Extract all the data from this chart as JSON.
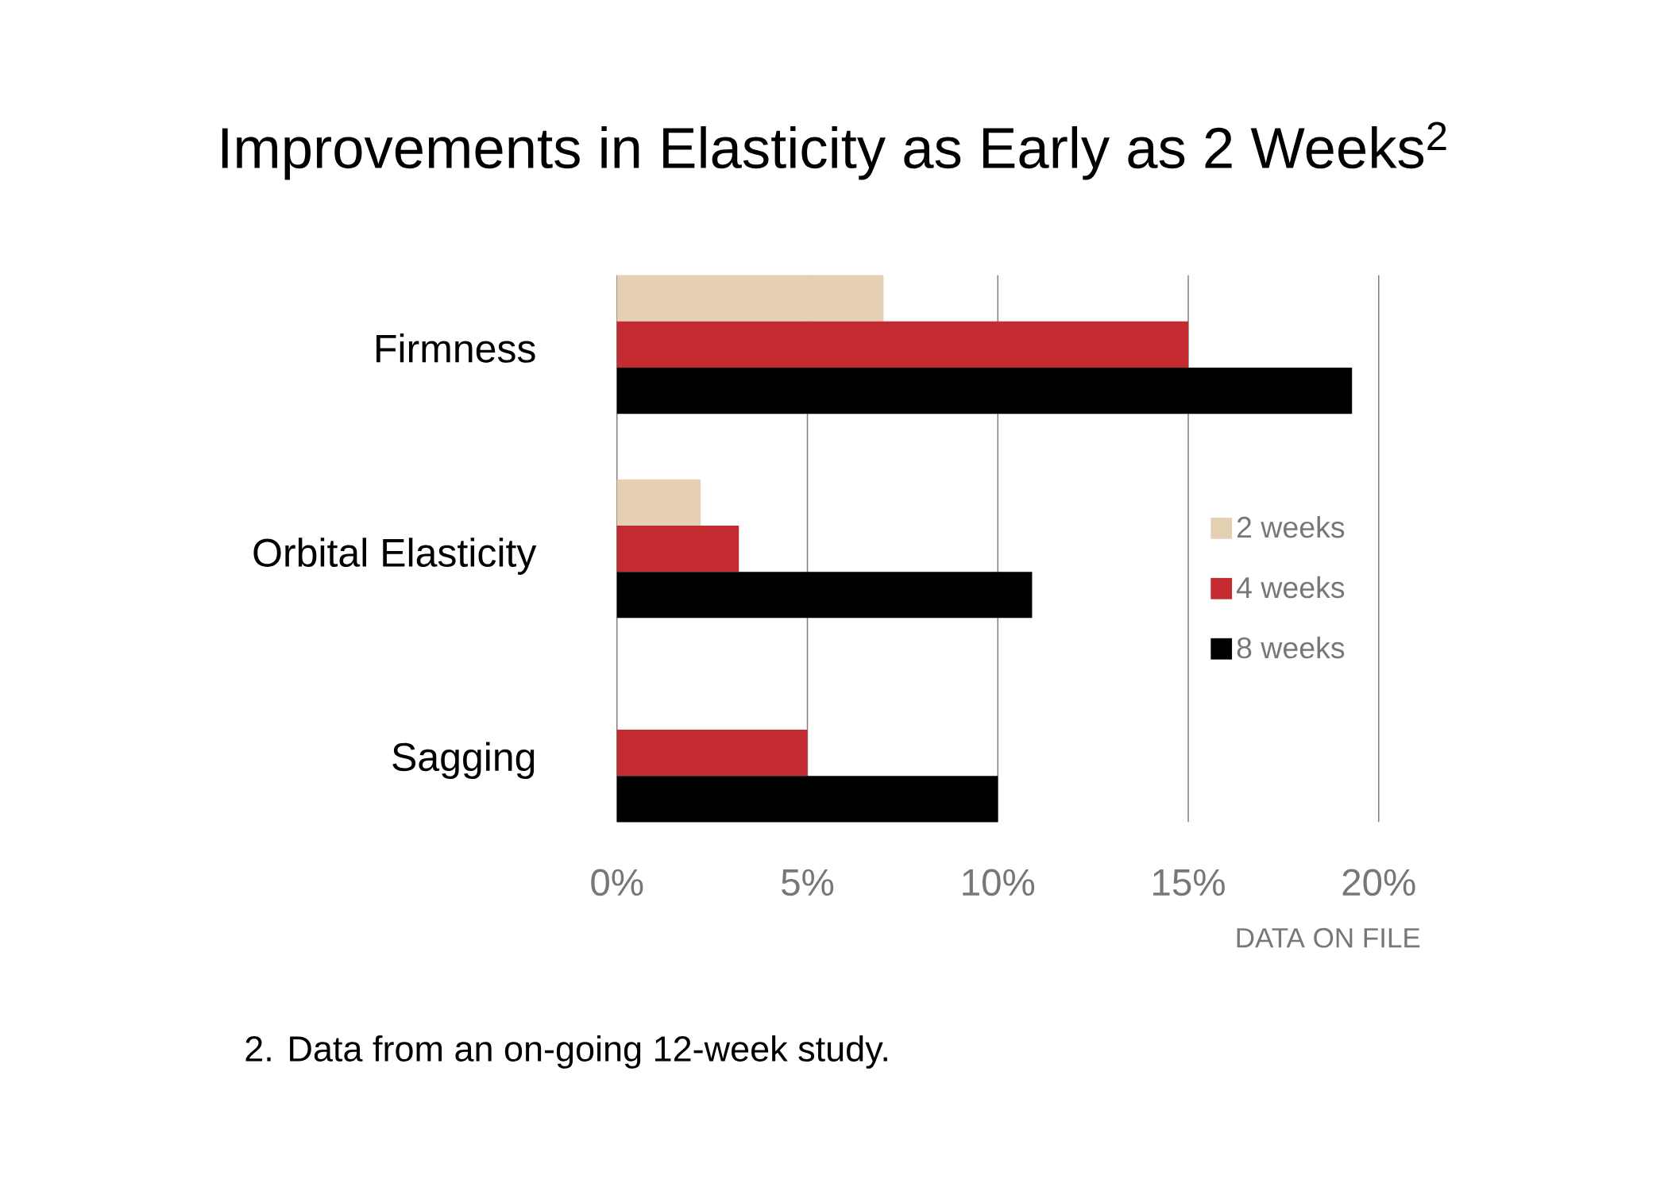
{
  "chart_data": {
    "type": "bar",
    "orientation": "horizontal",
    "title": "Improvements in Elasticity as Early as 2 Weeks$^{2}$",
    "categories": [
      "Firmness",
      "Orbital Elasticity",
      "Sagging"
    ],
    "series": [
      {
        "name": "2 weeks",
        "color": "#e6d0b4",
        "values": [
          7,
          2.2,
          null
        ]
      },
      {
        "name": "4 weeks",
        "color": "#c42b31",
        "values": [
          15,
          3.2,
          5
        ]
      },
      {
        "name": "8 weeks",
        "color": "#000000",
        "values": [
          19.3,
          10.9,
          10
        ]
      }
    ],
    "xlim": [
      0,
      20
    ],
    "xticks": [
      {
        "value": 0,
        "label": "0%"
      },
      {
        "value": 5,
        "label": "5%"
      },
      {
        "value": 10,
        "label": "10%"
      },
      {
        "value": 15,
        "label": "15%"
      },
      {
        "value": 20,
        "label": "20%"
      }
    ],
    "grid": "x",
    "legend": "right",
    "annotations": [
      "DATA ON FILE",
      "2. Data from an on-going 12-week study."
    ]
  }
}
